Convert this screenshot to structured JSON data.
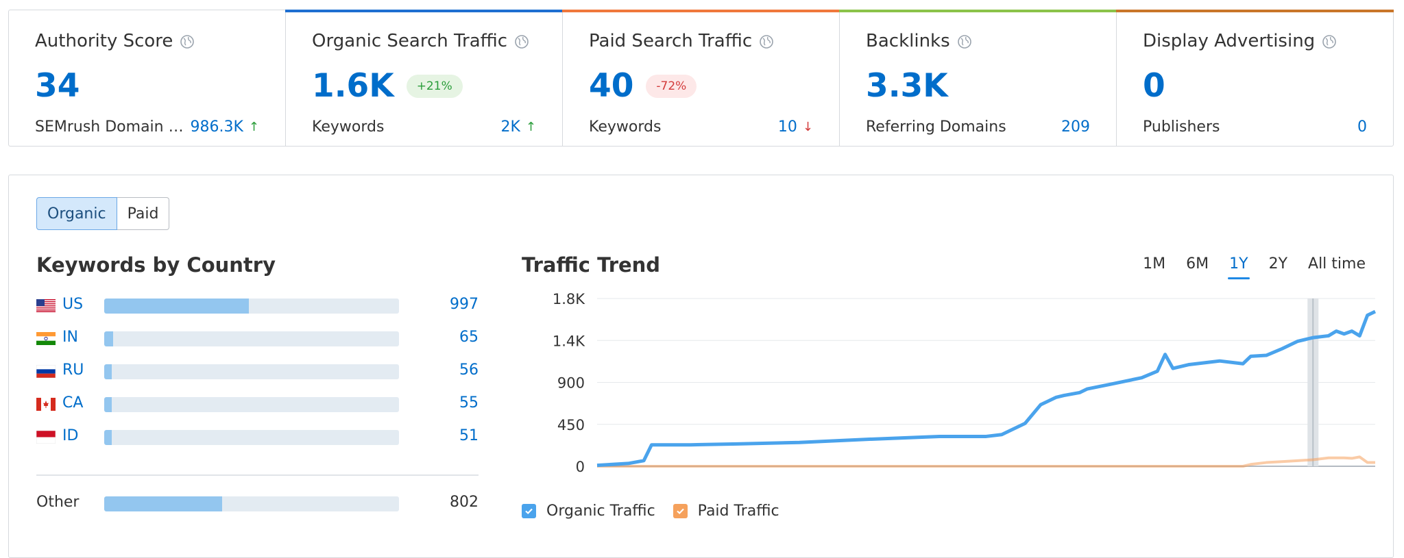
{
  "cards": [
    {
      "title": "Authority Score",
      "value": "34",
      "badge": "",
      "sub_label": "SEMrush Domain …",
      "sub_value": "986.3K",
      "trend": "up",
      "accent": ""
    },
    {
      "title": "Organic Search Traffic",
      "value": "1.6K",
      "badge": "+21%",
      "badge_type": "up",
      "sub_label": "Keywords",
      "sub_value": "2K",
      "trend": "up",
      "accent": "#1e6fd1"
    },
    {
      "title": "Paid Search Traffic",
      "value": "40",
      "badge": "-72%",
      "badge_type": "down",
      "sub_label": "Keywords",
      "sub_value": "10",
      "trend": "down",
      "accent": "#f0783c"
    },
    {
      "title": "Backlinks",
      "value": "3.3K",
      "badge": "",
      "sub_label": "Referring Domains",
      "sub_value": "209",
      "trend": "",
      "accent": "#8bc34a"
    },
    {
      "title": "Display Advertising",
      "value": "0",
      "badge": "",
      "sub_label": "Publishers",
      "sub_value": "0",
      "trend": "",
      "accent": "#c9762a"
    }
  ],
  "toggle": {
    "organic": "Organic",
    "paid": "Paid"
  },
  "keywords_by_country": {
    "title": "Keywords by Country",
    "rows": [
      {
        "code": "US",
        "value": "997",
        "fill": 0.49
      },
      {
        "code": "IN",
        "value": "65",
        "fill": 0.03
      },
      {
        "code": "RU",
        "value": "56",
        "fill": 0.025
      },
      {
        "code": "CA",
        "value": "55",
        "fill": 0.025
      },
      {
        "code": "ID",
        "value": "51",
        "fill": 0.025
      }
    ],
    "other": {
      "label": "Other",
      "value": "802",
      "fill": 0.4
    }
  },
  "traffic_trend": {
    "title": "Traffic Trend",
    "periods": [
      "1M",
      "6M",
      "1Y",
      "2Y",
      "All time"
    ],
    "active_period": "1Y"
  },
  "legend": {
    "organic": "Organic Traffic",
    "paid": "Paid Traffic"
  },
  "colors": {
    "organic": "#4aa3ec",
    "paid": "#f5a15c",
    "brand_blue": "#006dca"
  },
  "chart_data": {
    "type": "line",
    "title": "Traffic Trend",
    "xlabel": "",
    "ylabel": "",
    "ylim": [
      0,
      1800
    ],
    "yticks": [
      "0",
      "450",
      "900",
      "1.4K",
      "1.8K"
    ],
    "x": [
      0,
      4,
      6,
      7,
      12,
      18,
      26,
      35,
      44,
      50,
      52,
      55,
      57,
      59,
      60,
      62,
      63,
      66,
      70,
      72,
      73,
      74,
      76,
      80,
      83,
      84,
      86,
      88,
      90,
      92,
      94,
      95,
      96,
      97,
      98,
      99,
      100
    ],
    "series": [
      {
        "name": "Organic Traffic",
        "values": [
          10,
          30,
          60,
          230,
          230,
          240,
          255,
          290,
          320,
          320,
          340,
          460,
          660,
          740,
          760,
          790,
          830,
          880,
          950,
          1020,
          1200,
          1050,
          1090,
          1130,
          1100,
          1180,
          1190,
          1260,
          1340,
          1380,
          1400,
          1450,
          1420,
          1450,
          1400,
          1620,
          1660
        ]
      },
      {
        "name": "Paid Traffic",
        "values": [
          0,
          0,
          0,
          0,
          0,
          0,
          0,
          0,
          0,
          0,
          0,
          0,
          0,
          0,
          0,
          0,
          0,
          0,
          0,
          0,
          0,
          0,
          0,
          0,
          0,
          20,
          40,
          50,
          60,
          70,
          90,
          90,
          90,
          85,
          100,
          40,
          40
        ]
      }
    ]
  }
}
